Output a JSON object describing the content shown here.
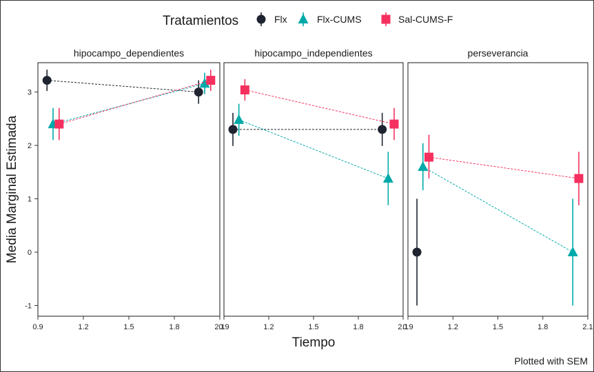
{
  "legend": {
    "title": "Tratamientos",
    "items": [
      {
        "label": "Flx",
        "color": "#1f2430",
        "shape": "circle"
      },
      {
        "label": "Flx-CUMS",
        "color": "#00a9a9",
        "shape": "triangle"
      },
      {
        "label": "Sal-CUMS-F",
        "color": "#f5305f",
        "shape": "square"
      }
    ]
  },
  "caption": "Plotted with SEM",
  "chart_data": {
    "type": "scatter",
    "subtype": "faceted dot-and-whisker with dashed connecting lines",
    "xlabel": "Tiempo",
    "ylabel": "Media Marginal Estimada",
    "ylim": [
      -1.2,
      3.55
    ],
    "y_ticks": [
      -1,
      0,
      1,
      2,
      3
    ],
    "y_tick_labels": [
      "-1",
      "0",
      "1",
      "2",
      "3"
    ],
    "x_ticks": [
      0.9,
      1.2,
      1.5,
      1.8,
      2.1
    ],
    "x_tick_labels": [
      "0.9",
      "1.2",
      "1.5",
      "1.8",
      "2.1"
    ],
    "panels": [
      {
        "strip": "hipocampo_dependientes",
        "xlim": [
          0.9,
          2.1
        ],
        "series": [
          {
            "name": "Flx",
            "x": [
              0.96,
              1.96
            ],
            "y": [
              3.22,
              3.0
            ],
            "lower": [
              3.02,
              2.78
            ],
            "upper": [
              3.42,
              3.22
            ]
          },
          {
            "name": "Flx-CUMS",
            "x": [
              1.0,
              2.0
            ],
            "y": [
              2.4,
              3.16
            ],
            "lower": [
              2.1,
              2.96
            ],
            "upper": [
              2.7,
              3.36
            ]
          },
          {
            "name": "Sal-CUMS-F",
            "x": [
              1.04,
              2.04
            ],
            "y": [
              2.4,
              3.22
            ],
            "lower": [
              2.1,
              3.02
            ],
            "upper": [
              2.7,
              3.42
            ]
          }
        ]
      },
      {
        "strip": "hipocampo_independientes",
        "xlim": [
          0.9,
          2.1
        ],
        "series": [
          {
            "name": "Flx",
            "x": [
              0.96,
              1.96
            ],
            "y": [
              2.3,
              2.3
            ],
            "lower": [
              1.99,
              1.99
            ],
            "upper": [
              2.61,
              2.61
            ]
          },
          {
            "name": "Flx-CUMS",
            "x": [
              1.0,
              2.0
            ],
            "y": [
              2.48,
              1.38
            ],
            "lower": [
              2.18,
              0.88
            ],
            "upper": [
              2.78,
              1.88
            ]
          },
          {
            "name": "Sal-CUMS-F",
            "x": [
              1.04,
              2.04
            ],
            "y": [
              3.04,
              2.4
            ],
            "lower": [
              2.84,
              2.1
            ],
            "upper": [
              3.24,
              2.7
            ]
          }
        ]
      },
      {
        "strip": "perseverancia",
        "xlim": [
          0.9,
          2.1
        ],
        "series": [
          {
            "name": "Flx",
            "x": [
              0.96
            ],
            "y": [
              0.0
            ],
            "lower": [
              -1.0
            ],
            "upper": [
              1.0
            ]
          },
          {
            "name": "Flx-CUMS",
            "x": [
              1.0,
              2.0
            ],
            "y": [
              1.6,
              0.0
            ],
            "lower": [
              1.16,
              -1.0
            ],
            "upper": [
              2.04,
              1.0
            ]
          },
          {
            "name": "Sal-CUMS-F",
            "x": [
              1.04,
              2.04
            ],
            "y": [
              1.78,
              1.38
            ],
            "lower": [
              1.38,
              0.88
            ],
            "upper": [
              2.2,
              1.88
            ]
          }
        ]
      }
    ]
  }
}
